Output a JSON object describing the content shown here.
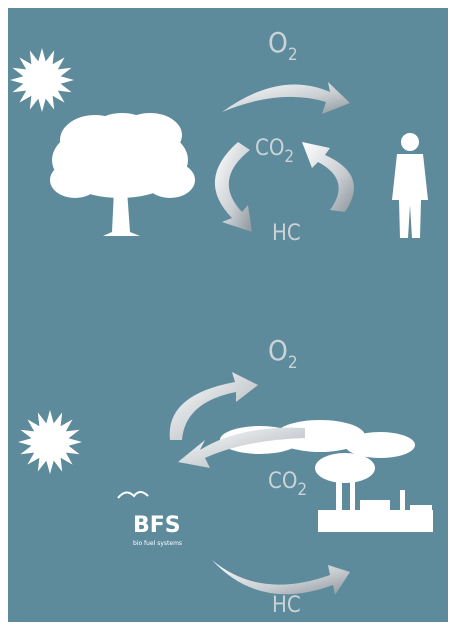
{
  "top": {
    "oxygen": {
      "main": "O",
      "sub": "2"
    },
    "carbon_dioxide": {
      "main": "CO",
      "sub": "2"
    },
    "hydrocarbon": {
      "main": "HC"
    }
  },
  "bottom": {
    "oxygen": {
      "main": "O",
      "sub": "2"
    },
    "carbon_dioxide": {
      "main": "CO",
      "sub": "2"
    },
    "hydrocarbon": {
      "main": "HC"
    },
    "logo": {
      "name": "BFS",
      "tagline": "bio fuel systems"
    }
  }
}
